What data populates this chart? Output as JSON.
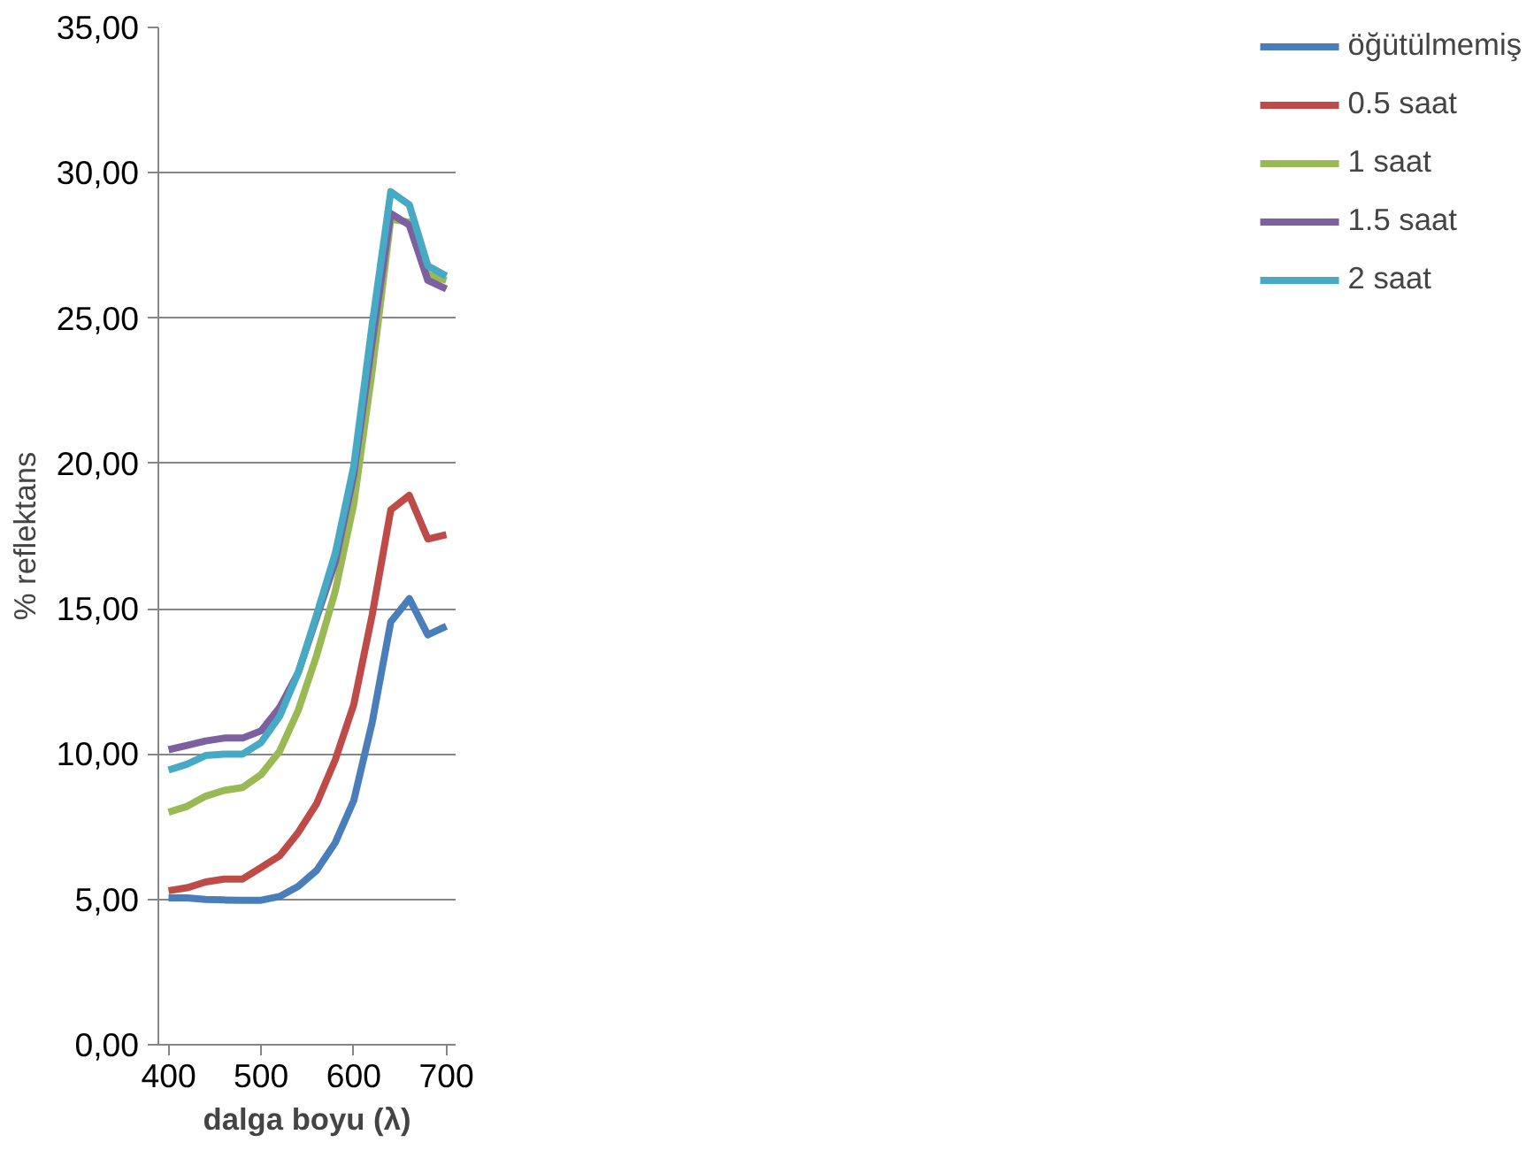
{
  "chart_data": {
    "type": "line",
    "xlabel": "dalga boyu (λ)",
    "ylabel": "% reflektans",
    "x": [
      400,
      420,
      440,
      460,
      480,
      500,
      520,
      540,
      560,
      580,
      600,
      620,
      640,
      660,
      680,
      700
    ],
    "series": [
      {
        "name": "öğütülmemiş",
        "color": "#4a7ebb",
        "values": [
          5.05,
          5.05,
          5.0,
          4.98,
          4.97,
          4.97,
          5.1,
          5.45,
          6.0,
          6.95,
          8.4,
          11.1,
          14.55,
          15.35,
          14.1,
          14.4
        ]
      },
      {
        "name": "0.5 saat",
        "color": "#be4b48",
        "values": [
          5.3,
          5.4,
          5.6,
          5.7,
          5.7,
          6.1,
          6.5,
          7.3,
          8.3,
          9.8,
          11.7,
          14.8,
          18.4,
          18.9,
          17.4,
          17.55
        ]
      },
      {
        "name": "1 saat",
        "color": "#98b954",
        "values": [
          8.0,
          8.2,
          8.55,
          8.75,
          8.85,
          9.3,
          10.1,
          11.5,
          13.4,
          15.6,
          18.6,
          23.2,
          28.4,
          28.3,
          26.5,
          26.3
        ]
      },
      {
        "name": "1.5 saat",
        "color": "#7d60a0",
        "values": [
          10.15,
          10.3,
          10.45,
          10.55,
          10.55,
          10.8,
          11.6,
          12.8,
          14.7,
          16.6,
          19.6,
          24.2,
          28.6,
          28.2,
          26.3,
          26.0
        ]
      },
      {
        "name": "2 saat",
        "color": "#46aac5",
        "values": [
          9.45,
          9.65,
          9.95,
          10.0,
          10.0,
          10.4,
          11.3,
          12.8,
          14.8,
          16.9,
          19.9,
          24.8,
          29.35,
          28.9,
          26.8,
          26.45
        ]
      }
    ],
    "xlim": [
      389,
      710
    ],
    "xticks": [
      400,
      500,
      600,
      700
    ],
    "ylim": [
      0,
      35
    ],
    "yticks": [
      {
        "value": 0,
        "label": "0,00"
      },
      {
        "value": 5,
        "label": "5,00"
      },
      {
        "value": 10,
        "label": "10,00"
      },
      {
        "value": 15,
        "label": "15,00"
      },
      {
        "value": 20,
        "label": "20,00"
      },
      {
        "value": 25,
        "label": "25,00"
      },
      {
        "value": 30,
        "label": "30,00"
      },
      {
        "value": 35,
        "label": "35,00"
      }
    ],
    "grid": "y",
    "legend": "right",
    "marker": "none",
    "line_style": "solid"
  }
}
